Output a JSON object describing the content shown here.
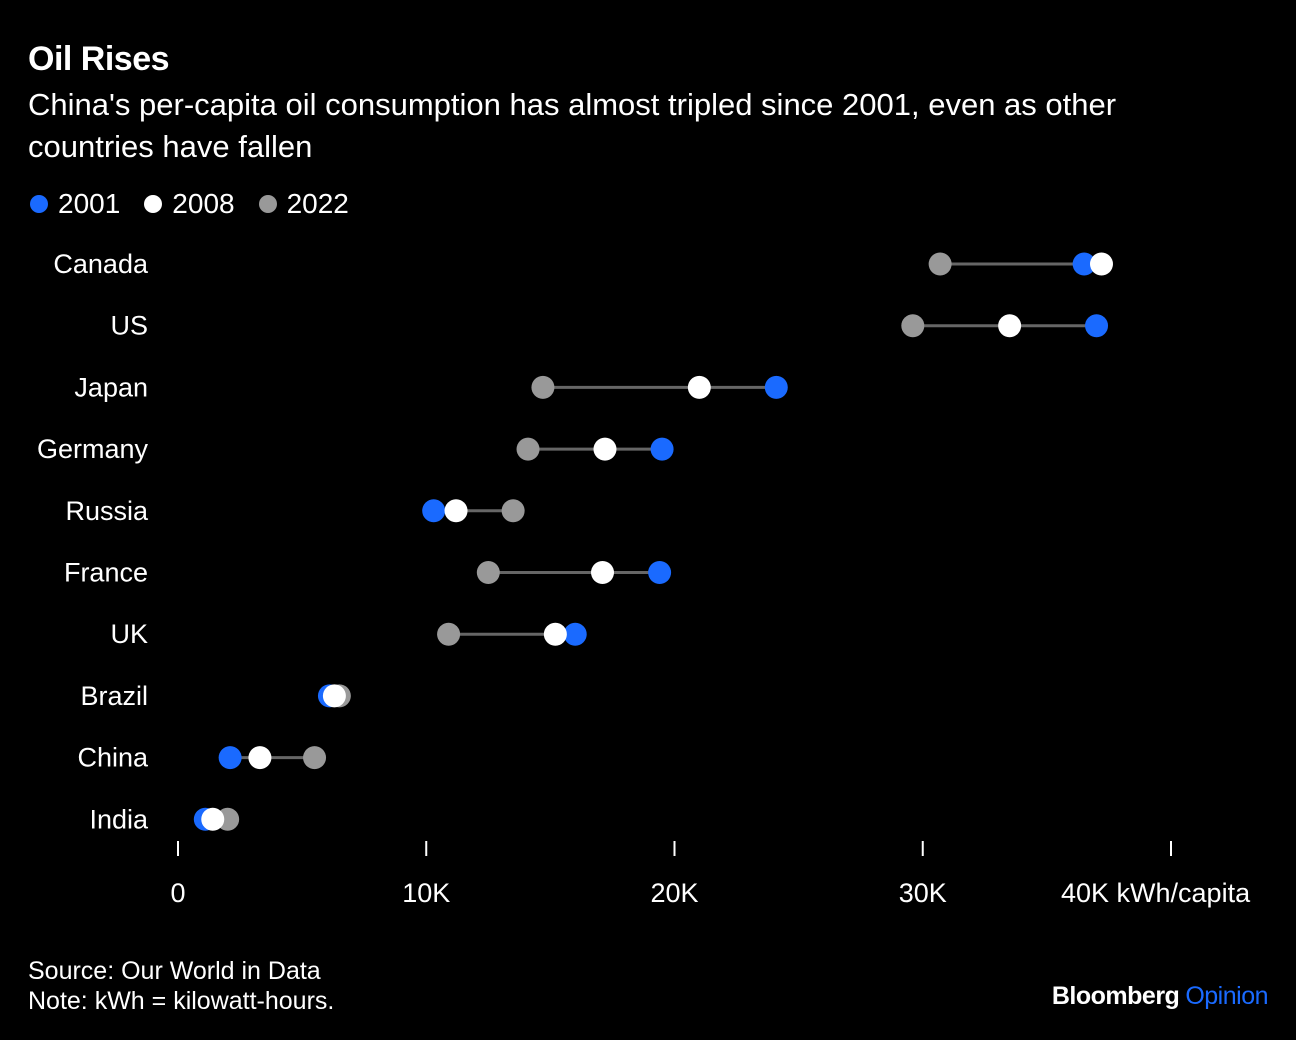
{
  "title": "Oil Rises",
  "subtitle": "China's per-capita oil consumption has almost tripled since 2001, even as other countries have fallen",
  "source": "Source: Our World in Data",
  "note": "Note: kWh = kilowatt-hours.",
  "brand": {
    "name": "Bloomberg",
    "section": "Opinion",
    "section_color": "#1a6aff"
  },
  "colors": {
    "background": "#000000",
    "connector": "#666666",
    "axis": "#ffffff"
  },
  "chart_data": {
    "type": "dot-range",
    "xlim": [
      0,
      40000
    ],
    "x_ticks": [
      0,
      10000,
      20000,
      30000,
      40000
    ],
    "x_tick_labels": [
      "0",
      "10K",
      "20K",
      "30K",
      "40K kWh/capita"
    ],
    "categories": [
      "Canada",
      "US",
      "Japan",
      "Germany",
      "Russia",
      "France",
      "UK",
      "Brazil",
      "China",
      "India"
    ],
    "series": [
      {
        "name": "2001",
        "color": "#1a6aff",
        "values": [
          36500,
          37000,
          24100,
          19500,
          10300,
          19400,
          16000,
          6100,
          2100,
          1100
        ]
      },
      {
        "name": "2008",
        "color": "#ffffff",
        "values": [
          37200,
          33500,
          21000,
          17200,
          11200,
          17100,
          15200,
          6300,
          3300,
          1400
        ]
      },
      {
        "name": "2022",
        "color": "#999999",
        "values": [
          30700,
          29600,
          14700,
          14100,
          13500,
          12500,
          10900,
          6500,
          5500,
          2000
        ]
      }
    ]
  }
}
